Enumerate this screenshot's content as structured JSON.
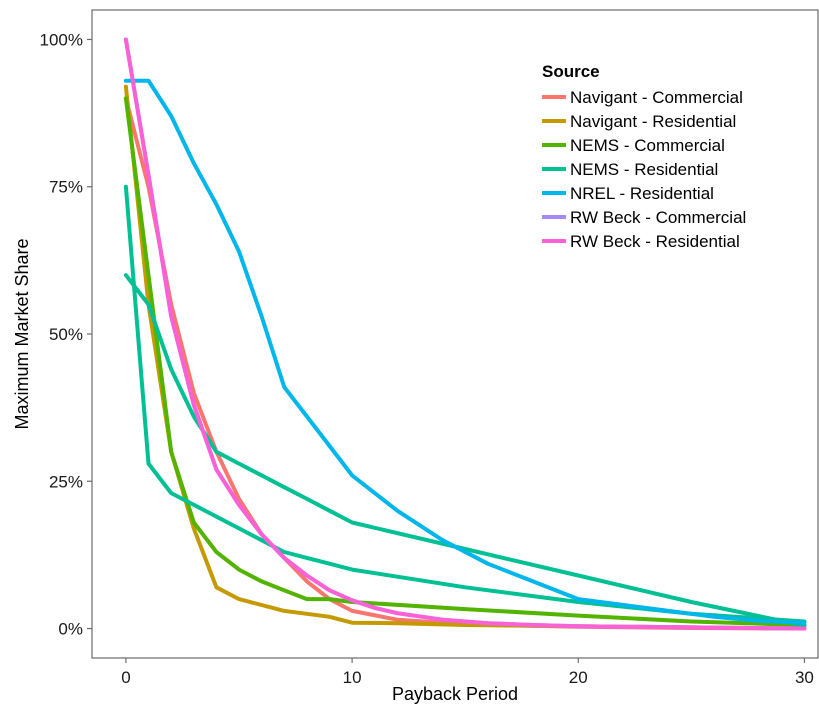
{
  "chart_data": {
    "type": "line",
    "xlabel": "Payback Period",
    "ylabel": "Maximum Market Share",
    "xlim": [
      -1.5,
      30.6
    ],
    "ylim": [
      -0.05,
      1.05
    ],
    "x_ticks": [
      0,
      10,
      20,
      30
    ],
    "x_tick_labels": [
      "0",
      "10",
      "20",
      "30"
    ],
    "y_ticks": [
      0,
      0.25,
      0.5,
      0.75,
      1.0
    ],
    "y_tick_labels": [
      "0%",
      "25%",
      "50%",
      "75%",
      "100%"
    ],
    "grid": false,
    "legend": {
      "title": "Source",
      "placement": "top-right"
    },
    "series": [
      {
        "name": "Navigant - Commercial",
        "color": "#F8766D",
        "x": [
          0,
          1,
          2,
          3,
          4,
          5,
          6,
          7,
          8,
          9,
          10,
          12,
          15,
          20,
          25,
          30
        ],
        "y": [
          0.9,
          0.75,
          0.55,
          0.4,
          0.3,
          0.22,
          0.16,
          0.12,
          0.08,
          0.05,
          0.03,
          0.015,
          0.007,
          0.003,
          0.001,
          0.0
        ]
      },
      {
        "name": "Navigant - Residential",
        "color": "#C49A00",
        "x": [
          0,
          1,
          2,
          3,
          4,
          5,
          6,
          7,
          8,
          9,
          10,
          12,
          15,
          20,
          25,
          30
        ],
        "y": [
          0.92,
          0.55,
          0.3,
          0.17,
          0.07,
          0.05,
          0.04,
          0.03,
          0.025,
          0.02,
          0.01,
          0.009,
          0.006,
          0.004,
          0.002,
          0.0
        ]
      },
      {
        "name": "NEMS - Commercial",
        "color": "#53B400",
        "x": [
          0,
          1,
          2,
          3,
          4,
          5,
          6,
          7,
          8,
          9,
          10,
          15,
          20,
          25,
          30
        ],
        "y": [
          0.9,
          0.6,
          0.3,
          0.18,
          0.13,
          0.1,
          0.08,
          0.065,
          0.05,
          0.05,
          0.045,
          0.033,
          0.022,
          0.012,
          0.006
        ]
      },
      {
        "name": "NEMS - Residential",
        "color": "#00C094",
        "x": [
          0,
          1,
          2,
          3,
          4,
          5,
          6,
          7,
          8,
          9,
          10,
          15,
          20,
          25,
          30
        ],
        "y": [
          0.75,
          0.28,
          0.23,
          0.21,
          0.19,
          0.17,
          0.15,
          0.13,
          0.12,
          0.11,
          0.1,
          0.07,
          0.045,
          0.025,
          0.012
        ]
      },
      {
        "name": "NEMS - Residential",
        "color": "#00C094",
        "x": [
          0,
          1,
          2,
          3,
          4,
          5,
          6,
          7,
          8,
          9,
          10,
          15,
          20,
          25,
          30
        ],
        "y": [
          0.6,
          0.55,
          0.44,
          0.36,
          0.3,
          0.28,
          0.26,
          0.24,
          0.22,
          0.2,
          0.18,
          0.135,
          0.09,
          0.045,
          0.005
        ]
      },
      {
        "name": "NREL - Residential",
        "color": "#00B6EB",
        "x": [
          0,
          1,
          2,
          3,
          4,
          5,
          6,
          7,
          8,
          9,
          10,
          12,
          14,
          16,
          18,
          20,
          22,
          24,
          26,
          28,
          30
        ],
        "y": [
          0.93,
          0.93,
          0.87,
          0.79,
          0.72,
          0.64,
          0.53,
          0.41,
          0.36,
          0.31,
          0.26,
          0.2,
          0.15,
          0.11,
          0.08,
          0.05,
          0.04,
          0.03,
          0.02,
          0.013,
          0.01
        ]
      },
      {
        "name": "RW Beck - Commercial",
        "color": "#A58AFF",
        "x": [
          0,
          1,
          2,
          3,
          4,
          5,
          6,
          7,
          8,
          9,
          10,
          11,
          12,
          14,
          16,
          18,
          20,
          25,
          30
        ],
        "y": [
          1.0,
          0.77,
          0.53,
          0.38,
          0.27,
          0.21,
          0.16,
          0.12,
          0.09,
          0.065,
          0.048,
          0.035,
          0.026,
          0.015,
          0.009,
          0.006,
          0.004,
          0.002,
          0.0
        ]
      },
      {
        "name": "RW Beck - Residential",
        "color": "#FB61D7",
        "x": [
          0,
          1,
          2,
          3,
          4,
          5,
          6,
          7,
          8,
          9,
          10,
          11,
          12,
          14,
          16,
          18,
          20,
          25,
          30
        ],
        "y": [
          1.0,
          0.77,
          0.53,
          0.38,
          0.27,
          0.21,
          0.16,
          0.12,
          0.09,
          0.065,
          0.048,
          0.035,
          0.026,
          0.015,
          0.009,
          0.006,
          0.004,
          0.002,
          0.0
        ]
      }
    ],
    "legend_entries": [
      {
        "label": "Navigant - Commercial",
        "color": "#F8766D"
      },
      {
        "label": "Navigant - Residential",
        "color": "#C49A00"
      },
      {
        "label": "NEMS - Commercial",
        "color": "#53B400"
      },
      {
        "label": "NEMS - Residential",
        "color": "#00C094"
      },
      {
        "label": "NREL - Residential",
        "color": "#00B6EB"
      },
      {
        "label": "RW Beck - Commercial",
        "color": "#A58AFF"
      },
      {
        "label": "RW Beck - Residential",
        "color": "#FB61D7"
      }
    ]
  }
}
